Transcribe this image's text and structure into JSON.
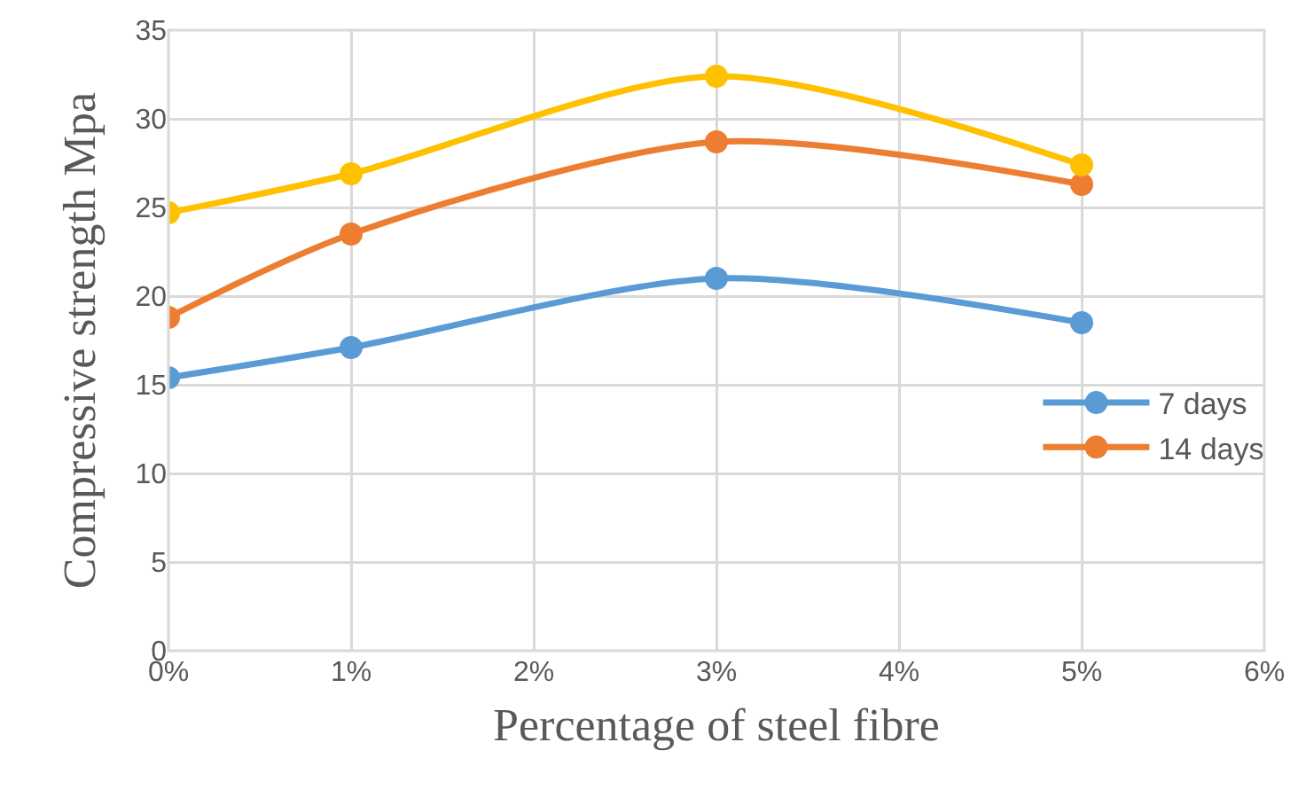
{
  "chart_data": {
    "type": "line",
    "xlabel": "Percentage of steel fibre",
    "ylabel": "Compressive strength Mpa",
    "x": [
      0,
      1,
      3,
      5
    ],
    "series": [
      {
        "name": "7 days",
        "color": "#5b9bd5",
        "values": [
          15.4,
          17.1,
          21.0,
          18.5
        ]
      },
      {
        "name": "14 days",
        "color": "#ed7d31",
        "values": [
          18.8,
          23.5,
          28.7,
          26.3
        ]
      },
      {
        "color": "#ffc000",
        "values": [
          24.7,
          26.9,
          32.4,
          27.4
        ]
      }
    ],
    "xlim": [
      0,
      6
    ],
    "xticks": [
      {
        "value": 0,
        "label": "0%"
      },
      {
        "value": 1,
        "label": "1%"
      },
      {
        "value": 2,
        "label": "2%"
      },
      {
        "value": 3,
        "label": "3%"
      },
      {
        "value": 4,
        "label": "4%"
      },
      {
        "value": 5,
        "label": "5%"
      },
      {
        "value": 6,
        "label": "6%"
      }
    ],
    "ylim": [
      0,
      35
    ],
    "yticks": [
      0,
      5,
      10,
      15,
      20,
      25,
      30,
      35
    ],
    "grid": true,
    "legend": "right",
    "marker": "circle",
    "line_style": "solid"
  }
}
